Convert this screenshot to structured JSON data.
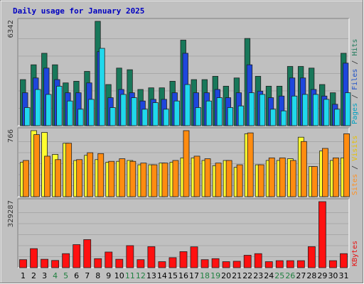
{
  "chart_data": {
    "type": "bar",
    "title": "Daily usage for January 2025",
    "categories": [
      "1",
      "2",
      "3",
      "4",
      "5",
      "6",
      "7",
      "8",
      "9",
      "10",
      "11",
      "12",
      "13",
      "14",
      "15",
      "16",
      "17",
      "18",
      "19",
      "20",
      "21",
      "22",
      "23",
      "24",
      "25",
      "26",
      "27",
      "28",
      "29",
      "30",
      "31"
    ],
    "weekend_days": [
      4,
      5,
      11,
      12,
      18,
      19,
      25,
      26
    ],
    "panels": [
      {
        "ymax_label": "6342",
        "ymax": 6342,
        "legend": [
          {
            "text": "Pages",
            "color": "#00a0c0"
          },
          {
            "text": " / ",
            "color": "#333333"
          },
          {
            "text": "Files",
            "color": "#1e50c8"
          },
          {
            "text": " / ",
            "color": "#333333"
          },
          {
            "text": "Hits",
            "color": "#1e7a5a"
          }
        ],
        "series": [
          {
            "name": "Hits",
            "color": "#18785a",
            "values": [
              2800,
              3700,
              4400,
              3700,
              2600,
              2700,
              3300,
              6342,
              2500,
              3500,
              3400,
              2200,
              2300,
              2300,
              2700,
              5200,
              2800,
              2800,
              3000,
              2400,
              2900,
              5300,
              3000,
              2400,
              2400,
              3600,
              3600,
              3500,
              2500,
              2000,
              4400
            ]
          },
          {
            "name": "Files",
            "color": "#1e46dc",
            "values": [
              2000,
              2900,
              3500,
              2800,
              2000,
              2000,
              2600,
              4500,
              1700,
              2200,
              2000,
              1500,
              1600,
              1600,
              2000,
              4400,
              2000,
              2000,
              2200,
              1700,
              2000,
              3700,
              2100,
              1700,
              1800,
              2900,
              2900,
              2200,
              1800,
              1300,
              3800
            ]
          },
          {
            "name": "Pages",
            "color": "#20d8ec",
            "values": [
              1100,
              2200,
              1900,
              2400,
              1500,
              1000,
              1600,
              4700,
              1100,
              1900,
              1700,
              1000,
              1400,
              1000,
              1500,
              2500,
              1100,
              1500,
              1700,
              1100,
              1200,
              2000,
              1900,
              1000,
              900,
              1800,
              1900,
              1900,
              1600,
              1000,
              2000
            ]
          }
        ]
      },
      {
        "ymax_label": "766",
        "ymax": 766,
        "legend": [
          {
            "text": "Sites",
            "color": "#ff9020"
          },
          {
            "text": " / ",
            "color": "#333333"
          },
          {
            "text": "Visits",
            "color": "#e8c000"
          }
        ],
        "series": [
          {
            "name": "Visits",
            "color": "#ffff30",
            "values": [
              400,
              766,
              745,
              490,
              620,
              420,
              480,
              430,
              400,
              410,
              420,
              370,
              370,
              390,
              400,
              450,
              450,
              420,
              360,
              420,
              340,
              730,
              370,
              420,
              420,
              440,
              690,
              350,
              530,
              420,
              450
            ]
          },
          {
            "name": "Sites",
            "color": "#ff8c10",
            "values": [
              420,
              720,
              470,
              430,
              620,
              430,
              510,
              500,
              410,
              440,
              410,
              390,
              370,
              390,
              420,
              766,
              470,
              440,
              390,
              420,
              370,
              740,
              370,
              450,
              450,
              420,
              640,
              350,
              560,
              450,
              730
            ]
          }
        ]
      },
      {
        "ymax_label": "329287",
        "ymax": 329287,
        "legend": [
          {
            "text": "KBytes",
            "color": "#e81010"
          }
        ],
        "series": [
          {
            "name": "KBytes",
            "color": "#ff1010",
            "values": [
              40000,
              95000,
              42000,
              36000,
              70000,
              115000,
              140000,
              45000,
              78000,
              42000,
              110000,
              40000,
              105000,
              30000,
              50000,
              80000,
              104000,
              40000,
              45000,
              30000,
              32000,
              62000,
              70000,
              30000,
              35000,
              35000,
              35000,
              105000,
              329287,
              35000,
              70000
            ]
          }
        ]
      }
    ]
  }
}
